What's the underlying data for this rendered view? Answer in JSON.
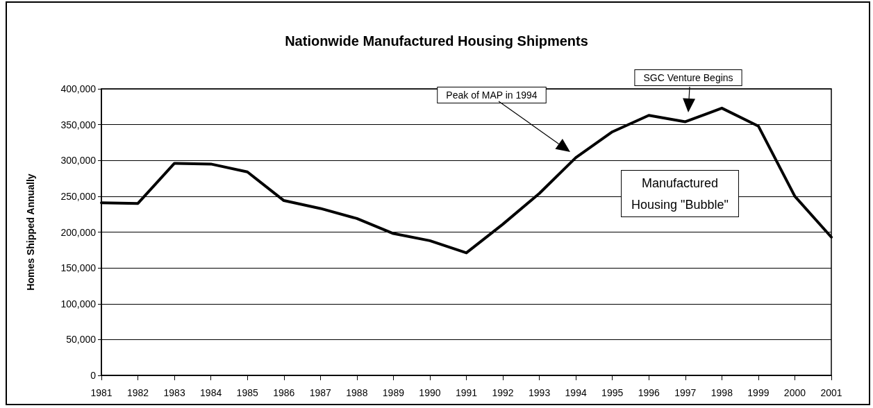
{
  "chart_data": {
    "type": "line",
    "title": "Nationwide Manufactured Housing Shipments",
    "ylabel": "Homes Shipped Annually",
    "categories": [
      "1981",
      "1982",
      "1983",
      "1984",
      "1985",
      "1986",
      "1987",
      "1988",
      "1989",
      "1990",
      "1991",
      "1992",
      "1993",
      "1994",
      "1995",
      "1996",
      "1997",
      "1998",
      "1999",
      "2000",
      "2001"
    ],
    "series": [
      {
        "color": "#000000",
        "values": [
          241000,
          240000,
          296000,
          295000,
          284000,
          244000,
          233000,
          219000,
          198000,
          188000,
          171000,
          211000,
          254000,
          304000,
          340000,
          363000,
          354000,
          373000,
          348000,
          250000,
          193000
        ]
      }
    ],
    "ylim": [
      0,
      400000
    ],
    "yticks": [
      0,
      {
        "value": 50000,
        "label": "50,000"
      },
      {
        "value": 100000,
        "label": "100,000"
      },
      {
        "value": 150000,
        "label": "150,000"
      },
      {
        "value": 200000,
        "label": "200,000"
      },
      {
        "value": 250000,
        "label": "250,000"
      },
      {
        "value": 300000,
        "label": "300,000"
      },
      {
        "value": 350000,
        "label": "350,000"
      },
      {
        "value": 400000,
        "label": "400,000"
      }
    ],
    "grid": "y",
    "marker": "none",
    "line_style": "solid",
    "annotations": [
      "Peak of MAP in 1994",
      "SGC Venture Begins",
      "Manufactured Housing \"Bubble\""
    ]
  }
}
